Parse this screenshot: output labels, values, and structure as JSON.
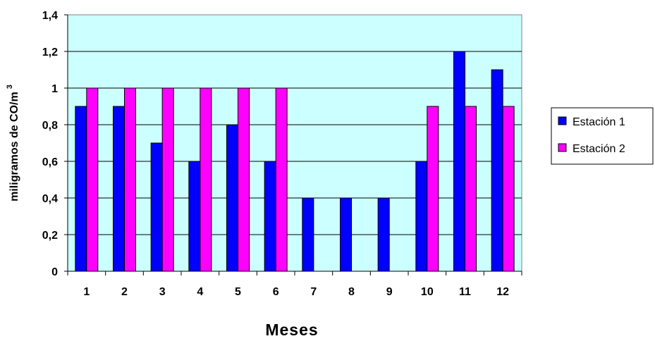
{
  "chart_data": {
    "type": "bar",
    "categories": [
      "1",
      "2",
      "3",
      "4",
      "5",
      "6",
      "7",
      "8",
      "9",
      "10",
      "11",
      "12"
    ],
    "series": [
      {
        "name": "Estación 1",
        "color": "#0000ff",
        "values": [
          0.9,
          0.9,
          0.7,
          0.6,
          0.8,
          0.6,
          0.4,
          0.4,
          0.4,
          0.6,
          1.2,
          1.1
        ]
      },
      {
        "name": "Estación 2",
        "color": "#ff00ff",
        "values": [
          1,
          1,
          1,
          1,
          1,
          1,
          0,
          0,
          0,
          0.9,
          0.9,
          0.9
        ]
      }
    ],
    "xlabel": "Meses",
    "ylabel": "miligramos de CO/m",
    "ylabel_superscript": "3",
    "ylim": [
      0,
      1.4
    ],
    "yticks": [
      "0",
      "0,2",
      "0,4",
      "0,6",
      "0,8",
      "1",
      "1,2",
      "1,4"
    ],
    "grid": true,
    "plot_background": "#ccffff",
    "legend_position": "right"
  }
}
